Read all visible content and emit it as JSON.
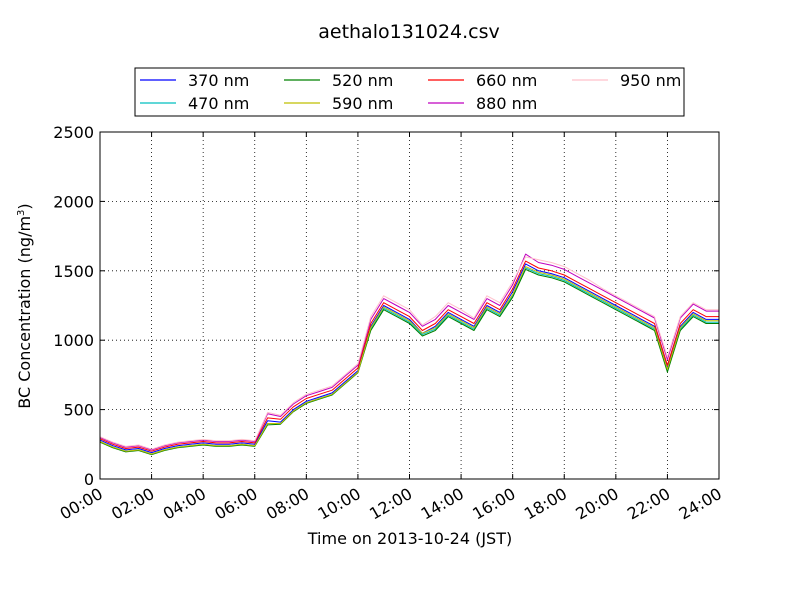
{
  "chart_data": {
    "type": "line",
    "title": "aethalo131024.csv",
    "xlabel": "Time on 2013-10-24 (JST)",
    "ylabel_main": "BC Concentration (ng/m",
    "ylabel_sup": "3",
    "ylabel_close": ")",
    "xlim": [
      "00:00",
      "24:00"
    ],
    "ylim": [
      0,
      2500
    ],
    "xticks": [
      "00:00",
      "02:00",
      "04:00",
      "06:00",
      "08:00",
      "10:00",
      "12:00",
      "14:00",
      "16:00",
      "18:00",
      "20:00",
      "22:00",
      "24:00"
    ],
    "yticks": [
      "0",
      "500",
      "1000",
      "1500",
      "2000",
      "2500"
    ],
    "grid": true,
    "legend_position": "top-center",
    "x": [
      "00:00",
      "00:30",
      "01:00",
      "01:30",
      "02:00",
      "02:30",
      "03:00",
      "03:30",
      "04:00",
      "04:30",
      "05:00",
      "05:30",
      "06:00",
      "06:30",
      "07:00",
      "07:30",
      "08:00",
      "08:30",
      "09:00",
      "09:30",
      "10:00",
      "10:30",
      "11:00",
      "11:30",
      "12:00",
      "12:30",
      "13:00",
      "13:30",
      "14:00",
      "14:30",
      "15:00",
      "15:30",
      "16:00",
      "16:30",
      "17:00",
      "17:30",
      "18:00",
      "18:30",
      "19:00",
      "19:30",
      "20:00",
      "20:30",
      "21:00",
      "21:30",
      "22:00",
      "22:30",
      "23:00",
      "23:30",
      "24:00"
    ],
    "series": [
      {
        "name": "370 nm",
        "color": "#0000ff",
        "values": [
          280,
          240,
          210,
          220,
          190,
          220,
          240,
          250,
          260,
          250,
          250,
          260,
          250,
          420,
          410,
          500,
          560,
          590,
          620,
          700,
          780,
          1100,
          1250,
          1200,
          1150,
          1050,
          1100,
          1200,
          1150,
          1100,
          1250,
          1200,
          1350,
          1550,
          1500,
          1480,
          1450,
          1400,
          1350,
          1300,
          1250,
          1200,
          1150,
          1100,
          800,
          1100,
          1200,
          1150,
          1150
        ]
      },
      {
        "name": "470 nm",
        "color": "#00bfbf",
        "values": [
          270,
          230,
          200,
          210,
          180,
          210,
          230,
          240,
          250,
          240,
          240,
          250,
          240,
          400,
          400,
          490,
          550,
          580,
          610,
          690,
          770,
          1080,
          1230,
          1180,
          1130,
          1040,
          1080,
          1180,
          1130,
          1080,
          1230,
          1180,
          1320,
          1520,
          1480,
          1460,
          1430,
          1380,
          1330,
          1280,
          1230,
          1180,
          1130,
          1080,
          780,
          1080,
          1180,
          1130,
          1130
        ]
      },
      {
        "name": "520 nm",
        "color": "#008000",
        "values": [
          265,
          225,
          195,
          205,
          175,
          205,
          225,
          235,
          245,
          235,
          235,
          245,
          235,
          390,
          395,
          485,
          545,
          575,
          605,
          685,
          765,
          1070,
          1220,
          1170,
          1120,
          1030,
          1070,
          1170,
          1120,
          1070,
          1220,
          1170,
          1310,
          1510,
          1470,
          1450,
          1420,
          1370,
          1320,
          1270,
          1220,
          1170,
          1120,
          1070,
          770,
          1070,
          1170,
          1120,
          1120
        ]
      },
      {
        "name": "590 nm",
        "color": "#bfbf00",
        "values": [
          270,
          230,
          200,
          210,
          180,
          210,
          230,
          240,
          250,
          240,
          240,
          250,
          240,
          400,
          400,
          490,
          550,
          580,
          610,
          690,
          770,
          1090,
          1240,
          1190,
          1140,
          1050,
          1090,
          1190,
          1140,
          1090,
          1240,
          1190,
          1330,
          1530,
          1490,
          1470,
          1440,
          1390,
          1340,
          1290,
          1240,
          1190,
          1140,
          1090,
          790,
          1090,
          1190,
          1140,
          1140
        ]
      },
      {
        "name": "660 nm",
        "color": "#ff0000",
        "values": [
          290,
          250,
          220,
          230,
          200,
          230,
          250,
          260,
          270,
          260,
          260,
          270,
          260,
          440,
          430,
          520,
          580,
          610,
          640,
          720,
          800,
          1120,
          1270,
          1220,
          1170,
          1070,
          1120,
          1220,
          1170,
          1120,
          1270,
          1220,
          1370,
          1570,
          1520,
          1500,
          1470,
          1420,
          1370,
          1320,
          1270,
          1220,
          1170,
          1120,
          820,
          1120,
          1220,
          1170,
          1170
        ]
      },
      {
        "name": "880 nm",
        "color": "#bf00bf",
        "values": [
          300,
          260,
          230,
          240,
          210,
          240,
          260,
          270,
          280,
          270,
          270,
          280,
          270,
          470,
          450,
          540,
          600,
          630,
          660,
          740,
          820,
          1150,
          1300,
          1250,
          1200,
          1100,
          1150,
          1250,
          1200,
          1150,
          1300,
          1250,
          1400,
          1620,
          1560,
          1540,
          1510,
          1460,
          1410,
          1360,
          1310,
          1260,
          1210,
          1160,
          860,
          1160,
          1260,
          1210,
          1210
        ]
      },
      {
        "name": "950 nm",
        "color": "#ffc0cb",
        "values": [
          305,
          265,
          235,
          245,
          215,
          245,
          265,
          275,
          285,
          275,
          275,
          285,
          275,
          480,
          460,
          550,
          610,
          640,
          670,
          750,
          830,
          1170,
          1320,
          1270,
          1220,
          1110,
          1170,
          1270,
          1220,
          1160,
          1320,
          1270,
          1420,
          1600,
          1580,
          1560,
          1530,
          1480,
          1430,
          1370,
          1320,
          1270,
          1220,
          1170,
          880,
          1170,
          1270,
          1220,
          1220
        ]
      }
    ]
  }
}
